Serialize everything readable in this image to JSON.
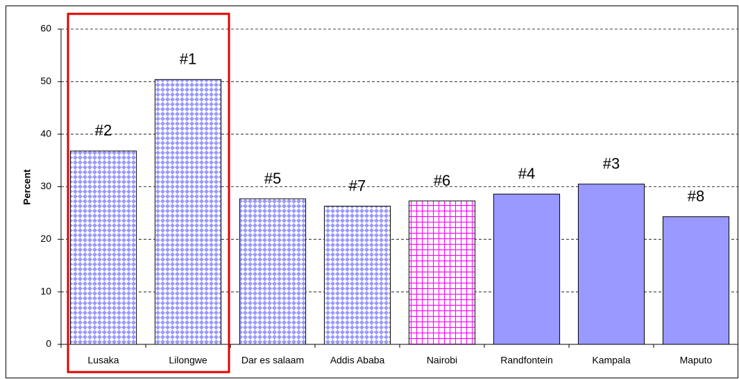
{
  "chart_data": {
    "type": "bar",
    "y_label": "Percent",
    "categories": [
      "Lusaka",
      "Lilongwe",
      "Dar es salaam",
      "Addis Ababa",
      "Nairobi",
      "Randfontein",
      "Kampala",
      "Maputo"
    ],
    "values": [
      36.8,
      50.4,
      27.7,
      26.3,
      27.3,
      28.6,
      30.5,
      24.3
    ],
    "bar_labels": [
      "#2",
      "#1",
      "#5",
      "#7",
      "#6",
      "#4",
      "#3",
      "#8"
    ],
    "fills": [
      "diamond",
      "diamond",
      "diamond",
      "diamond",
      "grid",
      "solid",
      "solid",
      "solid"
    ],
    "colors": [
      "#9999ff",
      "#9999ff",
      "#9999ff",
      "#9999ff",
      "#ff00ff",
      "#9999ff",
      "#9999ff",
      "#9999ff"
    ],
    "ylim": [
      0,
      60
    ],
    "yticks": [
      0,
      10,
      20,
      30,
      40,
      50,
      60
    ],
    "grid": true
  }
}
